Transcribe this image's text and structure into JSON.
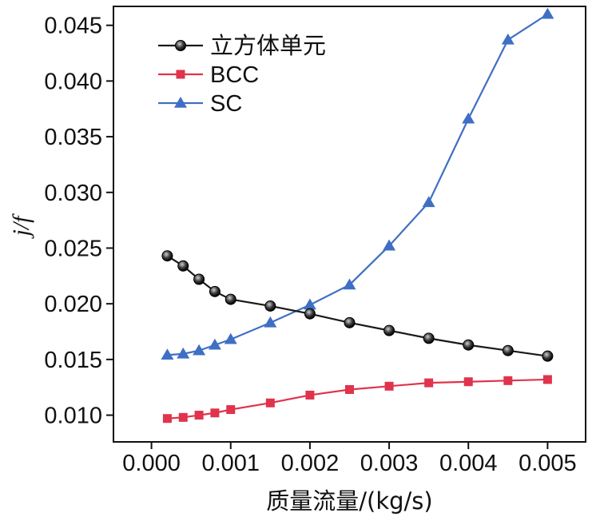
{
  "chart_data": {
    "type": "line",
    "title": "",
    "xlabel": "质量流量/(kg/s)",
    "ylabel": "j/f",
    "xlim": [
      -0.00048,
      0.00548
    ],
    "ylim": [
      0.0076,
      0.0467
    ],
    "xticks": [
      0.0,
      0.001,
      0.002,
      0.003,
      0.004,
      0.005
    ],
    "xtick_labels": [
      "0.000",
      "0.001",
      "0.002",
      "0.003",
      "0.004",
      "0.005"
    ],
    "yticks": [
      0.01,
      0.015,
      0.02,
      0.025,
      0.03,
      0.035,
      0.04,
      0.045
    ],
    "ytick_labels": [
      "0.010",
      "0.015",
      "0.020",
      "0.025",
      "0.030",
      "0.035",
      "0.040",
      "0.045"
    ],
    "grid": false,
    "legend_position": "top-left",
    "series": [
      {
        "name": "立方体单元",
        "color": "#1a1a1a",
        "marker": "circle",
        "x": [
          0.0002,
          0.0004,
          0.0006,
          0.0008,
          0.001,
          0.0015,
          0.002,
          0.0025,
          0.003,
          0.0035,
          0.004,
          0.0045,
          0.005
        ],
        "values": [
          0.0243,
          0.0234,
          0.0222,
          0.0211,
          0.0204,
          0.0198,
          0.0191,
          0.0183,
          0.0176,
          0.0169,
          0.0163,
          0.0158,
          0.0153
        ]
      },
      {
        "name": "BCC",
        "color": "#e0334c",
        "marker": "square",
        "x": [
          0.0002,
          0.0004,
          0.0006,
          0.0008,
          0.001,
          0.0015,
          0.002,
          0.0025,
          0.003,
          0.0035,
          0.004,
          0.0045,
          0.005
        ],
        "values": [
          0.0097,
          0.0098,
          0.01,
          0.0102,
          0.0105,
          0.0111,
          0.0118,
          0.0123,
          0.0126,
          0.0129,
          0.013,
          0.0131,
          0.0132
        ]
      },
      {
        "name": "SC",
        "color": "#3f6fc4",
        "marker": "triangle",
        "x": [
          0.0002,
          0.0004,
          0.0006,
          0.0008,
          0.001,
          0.0015,
          0.002,
          0.0025,
          0.003,
          0.0035,
          0.004,
          0.0045,
          0.005
        ],
        "values": [
          0.0154,
          0.0155,
          0.0158,
          0.0163,
          0.0168,
          0.0183,
          0.0199,
          0.0217,
          0.0252,
          0.0291,
          0.0366,
          0.0437,
          0.046
        ]
      }
    ]
  }
}
